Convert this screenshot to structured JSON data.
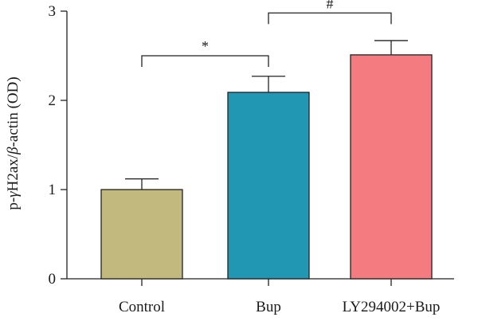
{
  "chart_data": {
    "type": "bar",
    "categories": [
      "Control",
      "Bup",
      "LY294002+Bup"
    ],
    "values": [
      1.0,
      2.09,
      2.51
    ],
    "errors": [
      0.12,
      0.18,
      0.16
    ],
    "colors": [
      "#c2b97e",
      "#2197b3",
      "#f47b7f"
    ],
    "ylabel": {
      "prefix": "p-",
      "gamma": "γ",
      "middle": "H2ax/",
      "beta": "β",
      "suffix": "-actin (OD)"
    },
    "ylim": [
      0,
      3
    ],
    "yticks": [
      "0",
      "1",
      "2",
      "3"
    ],
    "grid": false,
    "annotations": [
      {
        "label": "*",
        "from": 0,
        "to": 1,
        "level": 2.5
      },
      {
        "label": "#",
        "from": 1,
        "to": 2,
        "level": 2.98
      }
    ]
  }
}
